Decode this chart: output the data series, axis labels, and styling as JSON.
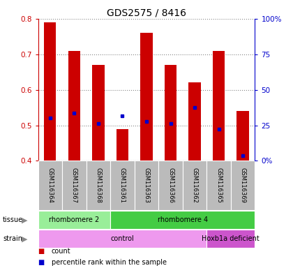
{
  "title": "GDS2575 / 8416",
  "samples": [
    "GSM116364",
    "GSM116367",
    "GSM116368",
    "GSM116361",
    "GSM116363",
    "GSM116366",
    "GSM116362",
    "GSM116365",
    "GSM116369"
  ],
  "bar_top": [
    0.79,
    0.71,
    0.67,
    0.49,
    0.76,
    0.67,
    0.62,
    0.71,
    0.54
  ],
  "bar_bottom": [
    0.4,
    0.4,
    0.4,
    0.4,
    0.4,
    0.4,
    0.4,
    0.4,
    0.4
  ],
  "percentile_vals": [
    0.52,
    0.535,
    0.505,
    0.527,
    0.51,
    0.505,
    0.55,
    0.49,
    0.415
  ],
  "ylim_left": [
    0.4,
    0.8
  ],
  "ylim_right": [
    0,
    100
  ],
  "yticks_left": [
    0.4,
    0.5,
    0.6,
    0.7,
    0.8
  ],
  "yticks_right": [
    0,
    25,
    50,
    75,
    100
  ],
  "ytick_labels_right": [
    "0%",
    "25",
    "50",
    "75",
    "100%"
  ],
  "bar_color": "#cc0000",
  "percentile_color": "#0000cc",
  "tissue_groups": [
    {
      "label": "rhombomere 2",
      "start": 0,
      "end": 3,
      "color": "#99ee99"
    },
    {
      "label": "rhombomere 4",
      "start": 3,
      "end": 9,
      "color": "#44cc44"
    }
  ],
  "strain_groups": [
    {
      "label": "control",
      "start": 0,
      "end": 7,
      "color": "#ee99ee"
    },
    {
      "label": "Hoxb1a deficient",
      "start": 7,
      "end": 9,
      "color": "#cc55cc"
    }
  ],
  "legend_items": [
    {
      "label": "count",
      "color": "#cc0000"
    },
    {
      "label": "percentile rank within the sample",
      "color": "#0000cc"
    }
  ],
  "bg_color": "#ffffff",
  "left_tick_color": "#cc0000",
  "right_tick_color": "#0000cc",
  "label_bg_color": "#bbbbbb"
}
